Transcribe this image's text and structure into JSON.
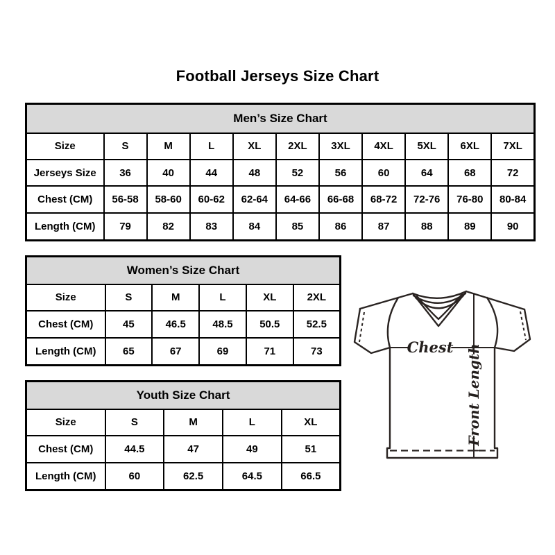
{
  "page": {
    "title": "Football Jerseys Size Chart"
  },
  "tables": [
    {
      "title": "Men’s Size Chart",
      "rows": [
        [
          "Size",
          "S",
          "M",
          "L",
          "XL",
          "2XL",
          "3XL",
          "4XL",
          "5XL",
          "6XL",
          "7XL"
        ],
        [
          "Jerseys Size",
          "36",
          "40",
          "44",
          "48",
          "52",
          "56",
          "60",
          "64",
          "68",
          "72"
        ],
        [
          "Chest (CM)",
          "56-58",
          "58-60",
          "60-62",
          "62-64",
          "64-66",
          "66-68",
          "68-72",
          "72-76",
          "76-80",
          "80-84"
        ],
        [
          "Length (CM)",
          "79",
          "82",
          "83",
          "84",
          "85",
          "86",
          "87",
          "88",
          "89",
          "90"
        ]
      ]
    },
    {
      "title": "Women’s Size Chart",
      "rows": [
        [
          "Size",
          "S",
          "M",
          "L",
          "XL",
          "2XL"
        ],
        [
          "Chest (CM)",
          "45",
          "46.5",
          "48.5",
          "50.5",
          "52.5"
        ],
        [
          "Length (CM)",
          "65",
          "67",
          "69",
          "71",
          "73"
        ]
      ]
    },
    {
      "title": "Youth Size Chart",
      "rows": [
        [
          "Size",
          "S",
          "M",
          "L",
          "XL"
        ],
        [
          "Chest (CM)",
          "44.5",
          "47",
          "49",
          "51"
        ],
        [
          "Length (CM)",
          "60",
          "62.5",
          "64.5",
          "66.5"
        ]
      ]
    }
  ],
  "diagram": {
    "chest_label": "Chest",
    "front_length_label": "Front Length"
  },
  "colors": {
    "background": "#ffffff",
    "table_header_bg": "#d9d9d9",
    "table_border": "#000000",
    "text": "#000000",
    "diagram_line": "#2a2422"
  }
}
